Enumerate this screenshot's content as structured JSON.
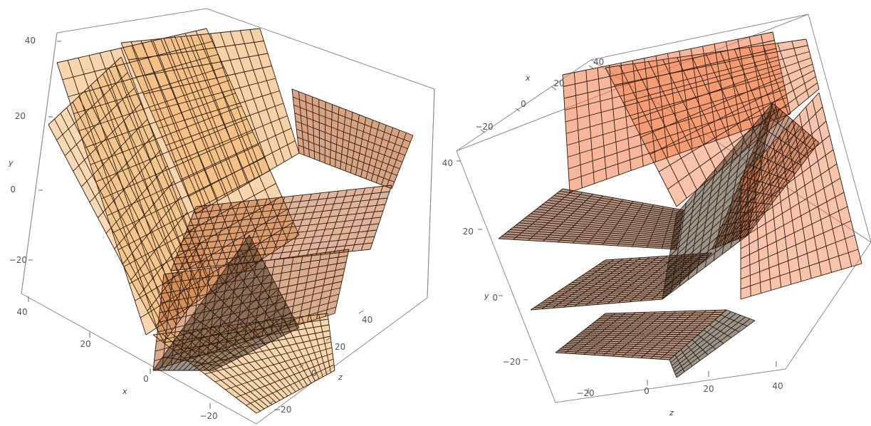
{
  "chart_data": [
    {
      "type": "surface3d",
      "surface_color": "#f0b36a",
      "surface_color_dark": "#b8581c",
      "mesh_color": "#2b1a0f",
      "axes": {
        "y": {
          "label": "y",
          "ticks": [
            "40",
            "20",
            "0",
            "−20"
          ]
        },
        "x": {
          "label": "x",
          "ticks": [
            "40",
            "20",
            "0",
            "−20"
          ]
        },
        "z": {
          "label": "z",
          "ticks": [
            "40",
            "20",
            "0",
            "−20"
          ]
        }
      }
    },
    {
      "type": "surface3d",
      "surface_color": "#f07a45",
      "surface_color_dark": "#7a3a1a",
      "mesh_color": "#2b1a0f",
      "axes": {
        "x": {
          "label": "x",
          "ticks": [
            "40",
            "20",
            "0",
            "−20"
          ]
        },
        "y": {
          "label": "y",
          "ticks": [
            "40",
            "20",
            "0",
            "−20"
          ]
        },
        "z": {
          "label": "z",
          "ticks": [
            "−20",
            "0",
            "20",
            "40"
          ]
        }
      }
    }
  ]
}
